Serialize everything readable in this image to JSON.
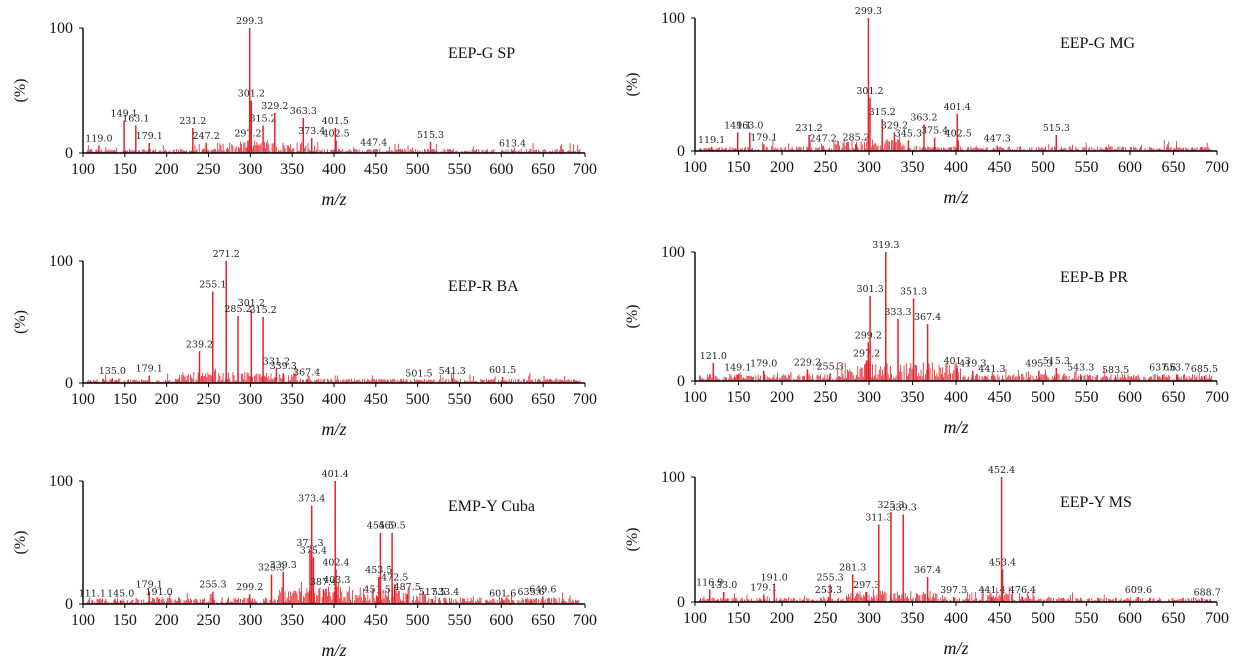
{
  "figure": {
    "accent_color": "#e8202a",
    "axis_color": "#000000"
  },
  "chart_data": [
    {
      "type": "line",
      "title": "EEP-G SP",
      "xlabel": "m/z",
      "ylabel": "(%)",
      "xlim": [
        100,
        700
      ],
      "ylim": [
        0,
        100
      ],
      "x_ticks": [
        "100",
        "150",
        "200",
        "250",
        "300",
        "350",
        "400",
        "450",
        "500",
        "550",
        "600",
        "650",
        "700"
      ],
      "y_ticks": [
        "0",
        "100"
      ],
      "peaks": [
        {
          "x": 119.0,
          "y": 6,
          "label": "119.0"
        },
        {
          "x": 149.1,
          "y": 26,
          "label": "149.1"
        },
        {
          "x": 163.1,
          "y": 22,
          "label": "163.1"
        },
        {
          "x": 179.1,
          "y": 8,
          "label": "179.1"
        },
        {
          "x": 231.2,
          "y": 20,
          "label": "231.2"
        },
        {
          "x": 247.2,
          "y": 8,
          "label": "247.2"
        },
        {
          "x": 297.2,
          "y": 10,
          "label": "297.2"
        },
        {
          "x": 299.3,
          "y": 100,
          "label": "299.3"
        },
        {
          "x": 301.2,
          "y": 42,
          "label": "301.2"
        },
        {
          "x": 315.2,
          "y": 22,
          "label": "315.2"
        },
        {
          "x": 329.2,
          "y": 32,
          "label": "329.2"
        },
        {
          "x": 363.3,
          "y": 28,
          "label": "363.3"
        },
        {
          "x": 373.4,
          "y": 12,
          "label": "373.4"
        },
        {
          "x": 401.5,
          "y": 20,
          "label": "401.5"
        },
        {
          "x": 402.5,
          "y": 10,
          "label": "402.5"
        },
        {
          "x": 447.4,
          "y": 3,
          "label": "447.4"
        },
        {
          "x": 515.3,
          "y": 9,
          "label": "515.3"
        },
        {
          "x": 613.4,
          "y": 2,
          "label": "613.4"
        }
      ]
    },
    {
      "type": "line",
      "title": "EEP-G MG",
      "xlabel": "m/z",
      "ylabel": "(%)",
      "xlim": [
        100,
        700
      ],
      "ylim": [
        0,
        100
      ],
      "x_ticks": [
        "100",
        "150",
        "200",
        "250",
        "300",
        "350",
        "400",
        "450",
        "500",
        "550",
        "600",
        "650",
        "700"
      ],
      "y_ticks": [
        "0",
        "100"
      ],
      "peaks": [
        {
          "x": 119.1,
          "y": 3,
          "label": "119.1"
        },
        {
          "x": 149.1,
          "y": 14,
          "label": "149.1"
        },
        {
          "x": 163.0,
          "y": 14,
          "label": "163.0"
        },
        {
          "x": 179.1,
          "y": 5,
          "label": "179.1"
        },
        {
          "x": 231.2,
          "y": 12,
          "label": "231.2"
        },
        {
          "x": 247.2,
          "y": 4,
          "label": "247.2"
        },
        {
          "x": 285.2,
          "y": 5,
          "label": "285.2"
        },
        {
          "x": 299.3,
          "y": 100,
          "label": "299.3"
        },
        {
          "x": 301.2,
          "y": 40,
          "label": "301.2"
        },
        {
          "x": 315.2,
          "y": 24,
          "label": "315.2"
        },
        {
          "x": 329.2,
          "y": 14,
          "label": "329.2"
        },
        {
          "x": 345.3,
          "y": 8,
          "label": "345.3"
        },
        {
          "x": 363.2,
          "y": 20,
          "label": "363.2"
        },
        {
          "x": 375.4,
          "y": 10,
          "label": "375.4"
        },
        {
          "x": 401.4,
          "y": 28,
          "label": "401.4"
        },
        {
          "x": 402.5,
          "y": 8,
          "label": "402.5"
        },
        {
          "x": 447.3,
          "y": 4,
          "label": "447.3"
        },
        {
          "x": 515.3,
          "y": 12,
          "label": "515.3"
        }
      ]
    },
    {
      "type": "line",
      "title": "EEP-R BA",
      "xlabel": "m/z",
      "ylabel": "(%)",
      "xlim": [
        100,
        700
      ],
      "ylim": [
        0,
        100
      ],
      "x_ticks": [
        "100",
        "150",
        "200",
        "250",
        "300",
        "350",
        "400",
        "450",
        "500",
        "550",
        "600",
        "650",
        "700"
      ],
      "y_ticks": [
        "0",
        "100"
      ],
      "peaks": [
        {
          "x": 135.0,
          "y": 4,
          "label": "135.0"
        },
        {
          "x": 179.1,
          "y": 6,
          "label": "179.1"
        },
        {
          "x": 239.2,
          "y": 26,
          "label": "239.2"
        },
        {
          "x": 255.1,
          "y": 75,
          "label": "255.1"
        },
        {
          "x": 271.2,
          "y": 100,
          "label": "271.2"
        },
        {
          "x": 285.2,
          "y": 55,
          "label": "285.2"
        },
        {
          "x": 301.2,
          "y": 60,
          "label": "301.2"
        },
        {
          "x": 315.2,
          "y": 54,
          "label": "315.2"
        },
        {
          "x": 331.2,
          "y": 12,
          "label": "331.2"
        },
        {
          "x": 339.3,
          "y": 8,
          "label": "339.3"
        },
        {
          "x": 367.4,
          "y": 3,
          "label": "367.4"
        },
        {
          "x": 501.5,
          "y": 2,
          "label": "501.5"
        },
        {
          "x": 541.3,
          "y": 4,
          "label": "541.3"
        },
        {
          "x": 601.5,
          "y": 5,
          "label": "601.5"
        }
      ]
    },
    {
      "type": "line",
      "title": "EEP-B PR",
      "xlabel": "m/z",
      "ylabel": "(%)",
      "xlim": [
        100,
        700
      ],
      "ylim": [
        0,
        100
      ],
      "x_ticks": [
        "100",
        "150",
        "200",
        "250",
        "300",
        "350",
        "400",
        "450",
        "500",
        "550",
        "600",
        "650",
        "700"
      ],
      "y_ticks": [
        "0",
        "100"
      ],
      "peaks": [
        {
          "x": 121.0,
          "y": 14,
          "label": "121.0"
        },
        {
          "x": 149.1,
          "y": 5,
          "label": "149.1"
        },
        {
          "x": 179.0,
          "y": 8,
          "label": "179.0"
        },
        {
          "x": 229.2,
          "y": 9,
          "label": "229.2"
        },
        {
          "x": 255.3,
          "y": 6,
          "label": "255.3"
        },
        {
          "x": 297.2,
          "y": 16,
          "label": "297.2"
        },
        {
          "x": 299.2,
          "y": 30,
          "label": "299.2"
        },
        {
          "x": 301.3,
          "y": 66,
          "label": "301.3"
        },
        {
          "x": 319.3,
          "y": 100,
          "label": "319.3"
        },
        {
          "x": 333.3,
          "y": 48,
          "label": "333.3"
        },
        {
          "x": 351.3,
          "y": 64,
          "label": "351.3"
        },
        {
          "x": 367.4,
          "y": 44,
          "label": "367.4"
        },
        {
          "x": 401.3,
          "y": 10,
          "label": "401.3"
        },
        {
          "x": 419.3,
          "y": 8,
          "label": "419.3"
        },
        {
          "x": 441.3,
          "y": 4,
          "label": "441.3"
        },
        {
          "x": 495.3,
          "y": 8,
          "label": "495.3"
        },
        {
          "x": 515.3,
          "y": 10,
          "label": "515.3"
        },
        {
          "x": 543.3,
          "y": 5,
          "label": "543.3"
        },
        {
          "x": 583.5,
          "y": 3,
          "label": "583.5"
        },
        {
          "x": 637.6,
          "y": 5,
          "label": "637.6"
        },
        {
          "x": 653.7,
          "y": 5,
          "label": "653.7"
        },
        {
          "x": 685.5,
          "y": 4,
          "label": "685.5"
        }
      ]
    },
    {
      "type": "line",
      "title": "EMP-Y Cuba",
      "xlabel": "m/z",
      "ylabel": "(%)",
      "xlim": [
        100,
        700
      ],
      "ylim": [
        0,
        100
      ],
      "x_ticks": [
        "100",
        "150",
        "200",
        "250",
        "300",
        "350",
        "400",
        "450",
        "500",
        "550",
        "600",
        "650",
        "700"
      ],
      "y_ticks": [
        "0",
        "100"
      ],
      "peaks": [
        {
          "x": 111.1,
          "y": 3,
          "label": "111.1"
        },
        {
          "x": 145.0,
          "y": 3,
          "label": "145.0"
        },
        {
          "x": 179.1,
          "y": 10,
          "label": "179.1"
        },
        {
          "x": 191.0,
          "y": 4,
          "label": "191.0"
        },
        {
          "x": 255.3,
          "y": 10,
          "label": "255.3"
        },
        {
          "x": 299.2,
          "y": 8,
          "label": "299.2"
        },
        {
          "x": 325.3,
          "y": 24,
          "label": "325.3"
        },
        {
          "x": 339.3,
          "y": 26,
          "label": "339.3"
        },
        {
          "x": 371.3,
          "y": 44,
          "label": "371.3"
        },
        {
          "x": 373.4,
          "y": 80,
          "label": "373.4"
        },
        {
          "x": 375.4,
          "y": 38,
          "label": "375.4"
        },
        {
          "x": 387.4,
          "y": 12,
          "label": "387.4"
        },
        {
          "x": 401.4,
          "y": 100,
          "label": "401.4"
        },
        {
          "x": 402.4,
          "y": 28,
          "label": "402.4"
        },
        {
          "x": 403.3,
          "y": 14,
          "label": "403.3"
        },
        {
          "x": 451.5,
          "y": 6,
          "label": "451.5"
        },
        {
          "x": 453.5,
          "y": 22,
          "label": "453.5"
        },
        {
          "x": 455.5,
          "y": 58,
          "label": "455.5"
        },
        {
          "x": 469.5,
          "y": 58,
          "label": "469.5"
        },
        {
          "x": 472.5,
          "y": 16,
          "label": "472.5"
        },
        {
          "x": 487.5,
          "y": 8,
          "label": "487.5"
        },
        {
          "x": 517.5,
          "y": 4,
          "label": "517.5"
        },
        {
          "x": 533.4,
          "y": 4,
          "label": "533.4"
        },
        {
          "x": 601.6,
          "y": 3,
          "label": "601.6"
        },
        {
          "x": 635.6,
          "y": 4,
          "label": "635.6"
        },
        {
          "x": 649.6,
          "y": 6,
          "label": "649.6"
        }
      ]
    },
    {
      "type": "line",
      "title": "EEP-Y MS",
      "xlabel": "m/z",
      "ylabel": "(%)",
      "xlim": [
        100,
        700
      ],
      "ylim": [
        0,
        100
      ],
      "x_ticks": [
        "100",
        "150",
        "200",
        "250",
        "300",
        "350",
        "400",
        "450",
        "500",
        "550",
        "600",
        "650",
        "700"
      ],
      "y_ticks": [
        "0",
        "100"
      ],
      "peaks": [
        {
          "x": 116.9,
          "y": 10,
          "label": "116.9"
        },
        {
          "x": 133.0,
          "y": 8,
          "label": "133.0"
        },
        {
          "x": 179.1,
          "y": 6,
          "label": "179.1"
        },
        {
          "x": 191.0,
          "y": 14,
          "label": "191.0"
        },
        {
          "x": 253.3,
          "y": 4,
          "label": "253.3"
        },
        {
          "x": 255.3,
          "y": 14,
          "label": "255.3"
        },
        {
          "x": 281.3,
          "y": 22,
          "label": "281.3"
        },
        {
          "x": 297.3,
          "y": 8,
          "label": "297.3"
        },
        {
          "x": 311.3,
          "y": 62,
          "label": "311.3"
        },
        {
          "x": 325.3,
          "y": 72,
          "label": "325.3"
        },
        {
          "x": 339.3,
          "y": 70,
          "label": "339.3"
        },
        {
          "x": 367.4,
          "y": 20,
          "label": "367.4"
        },
        {
          "x": 397.3,
          "y": 4,
          "label": "397.3"
        },
        {
          "x": 441.4,
          "y": 4,
          "label": "441.4"
        },
        {
          "x": 452.4,
          "y": 100,
          "label": "452.4"
        },
        {
          "x": 453.4,
          "y": 26,
          "label": "453.4"
        },
        {
          "x": 476.4,
          "y": 4,
          "label": "476.4"
        },
        {
          "x": 609.6,
          "y": 4,
          "label": "609.6"
        },
        {
          "x": 688.7,
          "y": 2,
          "label": "688.7"
        }
      ]
    }
  ]
}
